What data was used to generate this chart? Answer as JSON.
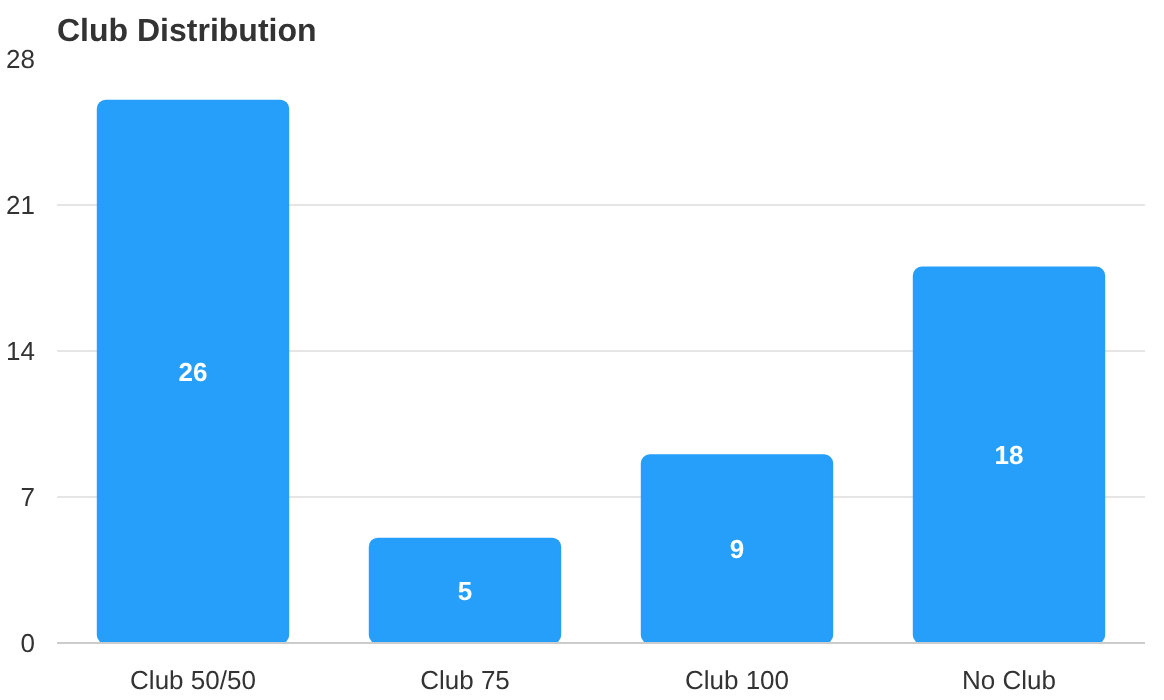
{
  "chart_data": {
    "type": "bar",
    "title": "Club Distribution",
    "categories": [
      "Club 50/50",
      "Club 75",
      "Club 100",
      "No Club"
    ],
    "values": [
      26,
      5,
      9,
      18
    ],
    "color": "#269ffb",
    "ylim": [
      0,
      28
    ],
    "yticks": [
      0,
      7,
      14,
      21,
      28
    ],
    "grid": "y",
    "data_labels": true
  }
}
